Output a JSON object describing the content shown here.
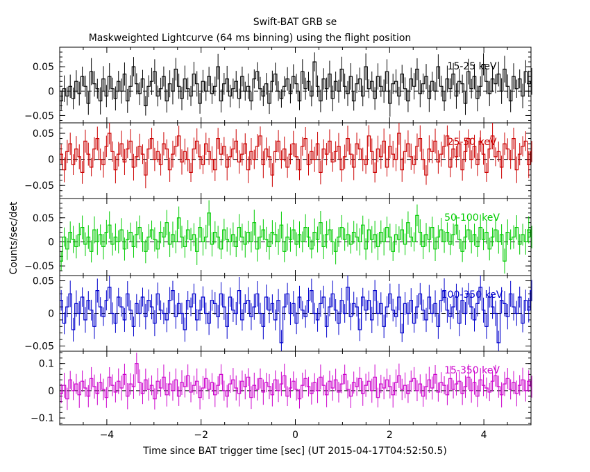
{
  "figure": {
    "title_line1": "Swift-BAT GRB se",
    "title_line2": "Maskweighted Lightcurve (64 ms binning) using the flight position",
    "ylabel": "Counts/sec/det",
    "xlabel": "Time since BAT trigger time [sec] (UT 2015-04-17T04:52:50.5)"
  },
  "chart_data": [
    {
      "type": "line",
      "title": "15-25 keV",
      "color": "#000000",
      "xlim": [
        -5,
        5
      ],
      "ylim": [
        -0.065,
        0.09
      ],
      "yticks": [
        -0.05,
        0,
        0.05
      ],
      "ytick_labels": [
        "−0.05",
        "0",
        "0.05"
      ],
      "zero_line": "dashed",
      "error_bars": true,
      "bin_width": 0.064,
      "series": [
        {
          "x_start": -5.0,
          "values": [
            -0.02,
            0.005,
            -0.01,
            0.01,
            -0.015,
            0.02,
            -0.005,
            0.03,
            0.01,
            -0.025,
            0.04,
            0.015,
            0.005,
            -0.02,
            0.025,
            -0.01,
            0.03,
            0.005,
            -0.015,
            0.02,
            0.0,
            0.035,
            -0.02,
            0.01,
            0.05,
            0.015,
            -0.005,
            0.025,
            -0.03,
            0.01,
            0.02,
            0.04,
            -0.01,
            0.005,
            0.03,
            -0.02,
            0.015,
            0.0,
            0.045,
            0.01,
            -0.015,
            0.025,
            0.005,
            -0.01,
            0.035,
            0.015,
            -0.025,
            0.02,
            0.0,
            0.03,
            -0.005,
            0.01,
            0.05,
            -0.02,
            0.015,
            0.025,
            -0.01,
            0.005,
            0.02,
            -0.015,
            0.03,
            0.0,
            0.01,
            -0.02,
            0.025,
            0.04,
            0.005,
            -0.01,
            0.015,
            -0.025,
            0.02,
            0.035,
            0.0,
            -0.015,
            0.01,
            0.025,
            -0.005,
            0.03,
            0.015,
            -0.02,
            0.04,
            0.005,
            0.02,
            -0.01,
            0.06,
            0.01,
            -0.02,
            0.025,
            0.005,
            0.035,
            -0.015,
            0.02,
            0.0,
            0.045,
            0.01,
            -0.005,
            0.03,
            -0.02,
            0.015,
            0.025,
            -0.01,
            0.05,
            0.005,
            0.02,
            -0.015,
            0.03,
            0.01,
            0.0,
            0.04,
            -0.025,
            0.015,
            0.02,
            -0.01,
            0.035,
            0.005,
            -0.02,
            0.025,
            0.01,
            0.045,
            -0.005,
            0.015,
            0.03,
            -0.015,
            0.02,
            0.0,
            0.05,
            0.01,
            -0.02,
            0.025,
            0.005,
            0.035,
            -0.01,
            0.02,
            0.015,
            -0.025,
            0.04,
            0.005,
            0.03,
            -0.015,
            0.01,
            0.055,
            0.02,
            -0.005,
            0.025,
            0.015,
            0.035,
            0.0,
            0.045,
            0.01,
            -0.02,
            0.03,
            0.005,
            0.025,
            -0.01,
            0.04,
            0.015,
            0.02,
            0.0,
            0.05,
            0.01,
            0.03
          ]
        }
      ]
    },
    {
      "type": "line",
      "title": "25-50 keV",
      "color": "#cc0000",
      "xlim": [
        -5,
        5
      ],
      "ylim": [
        -0.075,
        0.07
      ],
      "yticks": [
        -0.05,
        0,
        0.05
      ],
      "ytick_labels": [
        "−0.05",
        "0",
        "0.05"
      ],
      "zero_line": "dashed",
      "error_bars": true,
      "bin_width": 0.064,
      "series": [
        {
          "x_start": -5.0,
          "values": [
            0.01,
            -0.02,
            0.015,
            0.03,
            -0.01,
            0.02,
            0.005,
            -0.025,
            0.035,
            0.01,
            -0.015,
            0.02,
            0.04,
            0.0,
            -0.01,
            0.025,
            0.05,
            0.015,
            -0.02,
            0.01,
            0.03,
            -0.005,
            0.02,
            0.035,
            -0.015,
            0.005,
            0.025,
            0.01,
            -0.03,
            0.02,
            0.04,
            0.0,
            0.015,
            -0.01,
            0.03,
            0.02,
            -0.02,
            0.01,
            0.025,
            0.045,
            -0.005,
            0.015,
            0.0,
            -0.025,
            0.02,
            0.035,
            0.005,
            -0.01,
            0.03,
            0.015,
            0.0,
            -0.02,
            0.04,
            0.01,
            0.025,
            -0.015,
            0.005,
            0.02,
            0.035,
            -0.005,
            0.01,
            0.03,
            -0.02,
            0.015,
            0.0,
            0.025,
            0.045,
            -0.01,
            0.02,
            0.005,
            -0.03,
            0.015,
            0.035,
            0.0,
            0.02,
            -0.015,
            0.01,
            0.03,
            0.005,
            -0.02,
            0.025,
            0.04,
            -0.01,
            0.015,
            0.0,
            0.03,
            -0.025,
            0.02,
            0.01,
            0.035,
            -0.005,
            0.015,
            0.025,
            -0.02,
            0.005,
            0.04,
            0.01,
            -0.015,
            0.03,
            0.02,
            0.0,
            -0.01,
            0.045,
            0.015,
            -0.025,
            0.02,
            0.005,
            0.035,
            -0.015,
            0.025,
            0.01,
            0.0,
            0.05,
            -0.02,
            0.015,
            0.03,
            0.005,
            -0.01,
            0.025,
            0.04,
            0.0,
            -0.03,
            0.02,
            0.015,
            0.035,
            -0.005,
            0.01,
            0.025,
            0.045,
            -0.015,
            0.02,
            0.005,
            0.03,
            -0.02,
            0.015,
            0.04,
            0.0,
            0.025,
            -0.01,
            0.035,
            0.01,
            -0.025,
            0.02,
            0.045,
            0.005,
            0.015,
            -0.015,
            0.03,
            0.02,
            0.0,
            0.04,
            -0.02,
            0.01,
            0.025,
            0.035,
            -0.01,
            0.015,
            0.005,
            0.03,
            -0.04,
            0.02,
            0.01
          ]
        }
      ]
    },
    {
      "type": "line",
      "title": "50-100 keV",
      "color": "#00cc00",
      "xlim": [
        -5,
        5
      ],
      "ylim": [
        -0.07,
        0.09
      ],
      "yticks": [
        -0.05,
        0,
        0.05
      ],
      "ytick_labels": [
        "−0.05",
        "0",
        "0.05"
      ],
      "zero_line": "dashed",
      "error_bars": true,
      "bin_width": 0.064,
      "series": [
        {
          "x_start": -5.0,
          "values": [
            -0.04,
            0.01,
            -0.015,
            0.02,
            0.005,
            -0.01,
            0.015,
            0.03,
            -0.005,
            0.01,
            -0.02,
            0.025,
            0.0,
            0.015,
            -0.01,
            0.02,
            0.035,
            -0.005,
            0.01,
            0.0,
            0.025,
            -0.015,
            0.005,
            0.02,
            -0.01,
            0.015,
            0.03,
            0.0,
            -0.02,
            0.01,
            0.025,
            0.005,
            -0.015,
            0.02,
            0.01,
            0.04,
            -0.005,
            0.015,
            0.0,
            0.05,
            0.01,
            -0.01,
            0.025,
            0.005,
            0.015,
            -0.02,
            0.03,
            0.0,
            0.01,
            0.06,
            -0.005,
            0.02,
            0.01,
            -0.015,
            0.025,
            0.005,
            0.0,
            0.015,
            -0.01,
            0.03,
            0.01,
            -0.005,
            0.02,
            0.0,
            0.04,
            -0.015,
            0.01,
            0.025,
            0.005,
            -0.01,
            0.02,
            0.015,
            0.0,
            0.035,
            -0.02,
            0.01,
            0.005,
            0.025,
            -0.005,
            0.015,
            0.0,
            0.03,
            0.01,
            -0.015,
            0.02,
            0.005,
            0.04,
            -0.01,
            0.015,
            0.025,
            0.0,
            -0.02,
            0.01,
            0.03,
            0.005,
            0.015,
            -0.005,
            0.02,
            0.01,
            0.0,
            0.035,
            -0.015,
            0.025,
            0.005,
            0.015,
            -0.01,
            0.02,
            0.0,
            0.03,
            0.01,
            -0.02,
            0.015,
            0.005,
            0.025,
            -0.005,
            0.04,
            0.01,
            0.0,
            0.055,
            0.02,
            -0.01,
            0.015,
            0.005,
            0.03,
            -0.015,
            0.01,
            0.025,
            0.0,
            0.02,
            -0.005,
            0.015,
            0.035,
            0.005,
            -0.02,
            0.01,
            0.025,
            0.0,
            0.015,
            -0.01,
            0.03,
            0.005,
            0.02,
            -0.015,
            0.01,
            0.025,
            0.0,
            0.015,
            -0.04,
            0.02,
            0.005,
            0.01,
            0.03,
            -0.005,
            0.015,
            0.0,
            0.025,
            0.01,
            -0.01,
            0.02,
            0.015
          ]
        }
      ]
    },
    {
      "type": "line",
      "title": "100-350 keV",
      "color": "#0000cc",
      "xlim": [
        -5,
        5
      ],
      "ylim": [
        -0.058,
        0.058
      ],
      "yticks": [
        -0.05,
        0,
        0.05
      ],
      "ytick_labels": [
        "−0.05",
        "0",
        "0.05"
      ],
      "zero_line": "dashed",
      "error_bars": true,
      "bin_width": 0.064,
      "series": [
        {
          "x_start": -5.0,
          "values": [
            0.02,
            -0.015,
            0.01,
            0.03,
            -0.025,
            0.015,
            0.0,
            0.025,
            -0.01,
            0.02,
            0.005,
            -0.02,
            0.035,
            0.01,
            -0.005,
            0.02,
            0.04,
            0.0,
            -0.015,
            0.025,
            0.01,
            -0.01,
            0.03,
            0.005,
            -0.02,
            0.015,
            0.0,
            0.025,
            -0.005,
            0.02,
            0.01,
            -0.015,
            0.03,
            0.005,
            0.0,
            -0.01,
            0.02,
            0.035,
            -0.005,
            0.015,
            0.0,
            -0.025,
            0.02,
            0.01,
            0.03,
            -0.01,
            0.005,
            0.025,
            0.0,
            -0.015,
            0.02,
            0.015,
            -0.005,
            0.03,
            0.01,
            -0.02,
            0.025,
            0.005,
            0.0,
            0.035,
            -0.01,
            0.015,
            0.02,
            -0.005,
            0.01,
            0.03,
            0.0,
            -0.02,
            0.025,
            0.005,
            0.015,
            -0.01,
            0.02,
            -0.045,
            0.01,
            0.03,
            0.0,
            0.015,
            -0.015,
            0.025,
            0.005,
            -0.005,
            0.02,
            0.035,
            0.0,
            -0.01,
            0.015,
            0.025,
            -0.02,
            0.01,
            0.03,
            0.005,
            -0.015,
            0.02,
            0.0,
            0.04,
            -0.005,
            0.015,
            0.01,
            -0.025,
            0.025,
            0.005,
            0.02,
            -0.01,
            0.035,
            0.0,
            0.015,
            -0.02,
            0.01,
            0.03,
            0.005,
            -0.005,
            0.025,
            -0.03,
            0.015,
            0.0,
            0.02,
            -0.015,
            0.01,
            0.03,
            0.005,
            -0.01,
            0.025,
            0.0,
            0.015,
            -0.02,
            0.02,
            0.035,
            0.005,
            -0.005,
            0.01,
            0.025,
            -0.015,
            0.02,
            0.0,
            0.03,
            0.01,
            -0.01,
            0.015,
            0.04,
            0.005,
            -0.02,
            0.025,
            0.01,
            0.0,
            -0.045,
            0.02,
            0.015,
            -0.005,
            0.03,
            0.01,
            0.0,
            0.025,
            -0.015,
            0.02,
            0.005,
            0.035,
            0.01,
            -0.01,
            0.02
          ]
        }
      ]
    },
    {
      "type": "line",
      "title": "15-350 keV",
      "color": "#cc00cc",
      "xlim": [
        -5,
        5
      ],
      "ylim": [
        -0.125,
        0.145
      ],
      "yticks": [
        -0.1,
        0,
        0.1
      ],
      "ytick_labels": [
        "−0.1",
        "0",
        "0.1"
      ],
      "zero_line": "dashed",
      "error_bars": true,
      "bin_width": 0.064,
      "series": [
        {
          "x_start": -5.0,
          "values": [
            -0.01,
            0.02,
            -0.03,
            0.04,
            0.0,
            0.025,
            -0.015,
            0.035,
            0.01,
            -0.02,
            0.045,
            0.015,
            -0.01,
            0.03,
            0.005,
            -0.025,
            0.05,
            0.02,
            -0.005,
            0.035,
            0.01,
            0.06,
            -0.02,
            0.025,
            0.015,
            0.1,
            0.03,
            -0.01,
            0.04,
            0.005,
            0.02,
            -0.03,
            0.035,
            0.01,
            0.05,
            -0.015,
            0.025,
            0.0,
            0.04,
            -0.02,
            0.03,
            0.015,
            0.055,
            -0.005,
            0.02,
            0.035,
            -0.025,
            0.01,
            0.045,
            0.005,
            0.03,
            -0.015,
            0.02,
            0.06,
            0.0,
            -0.02,
            0.025,
            0.04,
            0.01,
            -0.01,
            0.035,
            0.015,
            0.05,
            -0.025,
            0.02,
            0.005,
            0.045,
            -0.005,
            0.03,
            0.015,
            -0.015,
            0.04,
            0.0,
            0.025,
            0.055,
            -0.02,
            0.01,
            0.035,
            0.005,
            -0.03,
            0.02,
            0.045,
            0.015,
            -0.01,
            0.03,
            0.0,
            0.05,
            0.02,
            -0.015,
            0.035,
            0.01,
            0.04,
            -0.005,
            0.025,
            0.06,
            0.005,
            -0.02,
            0.03,
            0.015,
            0.045,
            -0.01,
            0.02,
            0.035,
            0.0,
            0.05,
            -0.025,
            0.025,
            0.01,
            0.04,
            0.015,
            -0.015,
            0.03,
            0.055,
            0.005,
            0.02,
            -0.01,
            0.035,
            0.045,
            0.0,
            0.025,
            -0.02,
            0.015,
            0.04,
            0.01,
            0.06,
            -0.005,
            0.03,
            0.02,
            -0.015,
            0.045,
            0.005,
            0.025,
            0.035,
            -0.01,
            0.015,
            0.05,
            0.0,
            0.03,
            -0.02,
            0.04,
            0.02,
            0.01,
            -0.005,
            0.035,
            0.055,
            0.015,
            -0.015,
            0.025,
            0.045,
            0.005,
            0.03,
            -0.01,
            0.02,
            0.04,
            0.0,
            0.035,
            0.015,
            -0.005,
            0.05,
            0.025,
            0.01,
            0.045
          ]
        }
      ]
    }
  ],
  "xaxis": {
    "xlim": [
      -5,
      5
    ],
    "ticks": [
      -4,
      -2,
      0,
      2,
      4
    ],
    "tick_labels": [
      "−4",
      "−2",
      "0",
      "2",
      "4"
    ]
  }
}
